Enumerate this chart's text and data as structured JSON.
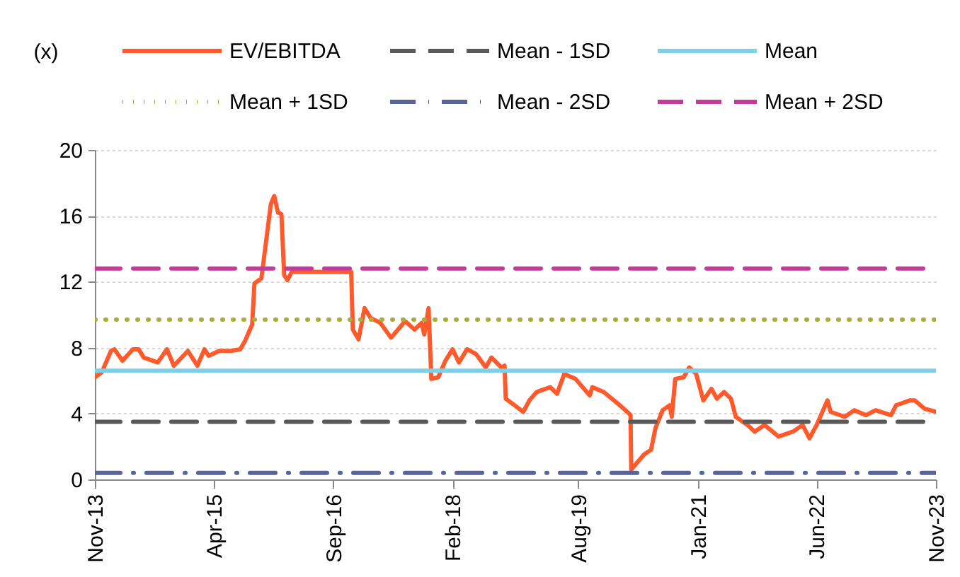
{
  "chart_data": {
    "type": "line",
    "ylabel": "(x)",
    "xlim": [
      "2013-11",
      "2023-11"
    ],
    "xticks": [
      {
        "value": "2013-11",
        "label": "Nov-13"
      },
      {
        "value": "2015-04",
        "label": "Apr-15"
      },
      {
        "value": "2016-09",
        "label": "Sep-16"
      },
      {
        "value": "2018-02",
        "label": "Feb-18"
      },
      {
        "value": "2019-08",
        "label": "Aug-19"
      },
      {
        "value": "2021-01",
        "label": "Jan-21"
      },
      {
        "value": "2022-06",
        "label": "Jun-22"
      },
      {
        "value": "2023-11",
        "label": "Nov-23"
      }
    ],
    "ylim": [
      0,
      20
    ],
    "yticks": [
      0,
      4,
      8,
      12,
      16,
      20
    ],
    "grid": "y",
    "legend": "top",
    "marker": "none",
    "series": [
      {
        "name": "EV/EBITDA",
        "color": "#ff5a2c",
        "line_style": "solid",
        "x": [
          "2013-11-01",
          "2013-12-01",
          "2014-01-10",
          "2014-01-25",
          "2014-03-01",
          "2014-04-15",
          "2014-05-10",
          "2014-06-01",
          "2014-08-01",
          "2014-09-10",
          "2014-10-10",
          "2014-11-20",
          "2014-12-10",
          "2015-01-20",
          "2015-02-20",
          "2015-03-10",
          "2015-04-25",
          "2015-06-15",
          "2015-07-25",
          "2015-08-15",
          "2015-09-15",
          "2015-09-25",
          "2015-10-25",
          "2015-11-15",
          "2015-12-05",
          "2015-12-20",
          "2016-01-05",
          "2016-01-20",
          "2016-02-01",
          "2016-02-15",
          "2016-03-05",
          "2016-11-18",
          "2016-11-25",
          "2016-12-20",
          "2017-01-15",
          "2017-02-10",
          "2017-03-25",
          "2017-05-10",
          "2017-07-10",
          "2017-08-20",
          "2017-09-20",
          "2017-10-01",
          "2017-10-20",
          "2017-11-01",
          "2017-12-01",
          "2018-01-01",
          "2018-02-01",
          "2018-03-01",
          "2018-04-05",
          "2018-05-15",
          "2018-06-25",
          "2018-07-20",
          "2018-09-01",
          "2018-09-15",
          "2018-09-20",
          "2018-10-28",
          "2018-12-05",
          "2019-01-01",
          "2019-02-01",
          "2019-04-01",
          "2019-05-01",
          "2019-06-01",
          "2019-07-20",
          "2019-09-20",
          "2019-10-01",
          "2019-11-20",
          "2020-01-20",
          "2020-03-01",
          "2020-03-15",
          "2020-03-18",
          "2020-05-12",
          "2020-06-12",
          "2020-07-01",
          "2020-08-01",
          "2020-09-01",
          "2020-09-10",
          "2020-09-25",
          "2020-11-01",
          "2020-11-25",
          "2020-12-25",
          "2021-01-25",
          "2021-03-01",
          "2021-03-25",
          "2021-04-25",
          "2021-05-25",
          "2021-06-15",
          "2021-08-05",
          "2021-09-05",
          "2021-10-18",
          "2021-12-18",
          "2022-02-18",
          "2022-04-01",
          "2022-05-01",
          "2022-06-01",
          "2022-07-18",
          "2022-08-01",
          "2022-10-01",
          "2022-11-12",
          "2023-01-01",
          "2023-02-12",
          "2023-04-20",
          "2023-05-12",
          "2023-07-12",
          "2023-08-01",
          "2023-09-12",
          "2023-11-01"
        ],
        "values": [
          6.2,
          6.5,
          7.8,
          7.9,
          7.2,
          7.9,
          7.9,
          7.4,
          7.1,
          7.9,
          6.9,
          7.5,
          7.8,
          6.9,
          7.9,
          7.5,
          7.8,
          7.8,
          7.9,
          8.4,
          9.4,
          11.9,
          12.2,
          14.5,
          16.7,
          17.2,
          16.2,
          16.1,
          12.4,
          12.1,
          12.6,
          12.6,
          9.1,
          8.5,
          10.4,
          9.8,
          9.5,
          8.6,
          9.6,
          9.1,
          9.5,
          8.8,
          10.4,
          6.1,
          6.2,
          7.2,
          7.9,
          7.1,
          7.9,
          7.6,
          6.8,
          7.4,
          6.8,
          6.9,
          4.9,
          4.5,
          4.1,
          4.8,
          5.3,
          5.6,
          5.2,
          6.4,
          6.1,
          5.1,
          5.6,
          5.3,
          4.6,
          4.1,
          3.9,
          0.6,
          1.5,
          1.8,
          3.1,
          4.2,
          4.5,
          3.8,
          6.1,
          6.2,
          6.8,
          6.4,
          4.8,
          5.5,
          4.9,
          5.3,
          4.9,
          3.8,
          3.3,
          2.9,
          3.3,
          2.6,
          2.9,
          3.3,
          2.5,
          3.3,
          4.8,
          4.1,
          3.8,
          4.2,
          3.9,
          4.2,
          3.9,
          4.5,
          4.8,
          4.8,
          4.3,
          4.1
        ]
      },
      {
        "name": "Mean - 1SD",
        "color": "#595959",
        "line_style": "dashed",
        "x": [
          "2013-11",
          "2023-11"
        ],
        "values": [
          3.5,
          3.5
        ]
      },
      {
        "name": "Mean",
        "color": "#7dd0e8",
        "line_style": "solid",
        "x": [
          "2013-11",
          "2023-11"
        ],
        "values": [
          6.6,
          6.6
        ]
      },
      {
        "name": "Mean + 1SD",
        "color": "#a9ac3a",
        "line_style": "dotted",
        "x": [
          "2013-11",
          "2023-11"
        ],
        "values": [
          9.7,
          9.7
        ]
      },
      {
        "name": "Mean - 2SD",
        "color": "#5a6496",
        "line_style": "dashdot",
        "x": [
          "2013-11",
          "2023-11"
        ],
        "values": [
          0.4,
          0.4
        ]
      },
      {
        "name": "Mean + 2SD",
        "color": "#c43c9a",
        "line_style": "dashed",
        "x": [
          "2013-11",
          "2023-11"
        ],
        "values": [
          12.8,
          12.8
        ]
      }
    ]
  }
}
